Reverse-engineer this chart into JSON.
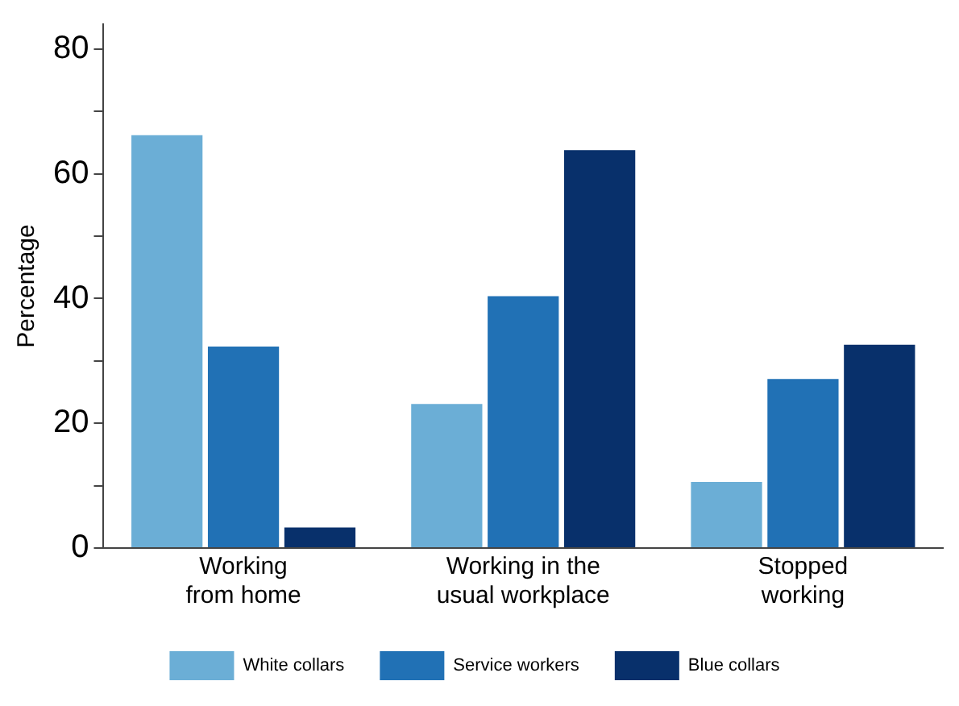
{
  "chart_data": {
    "type": "bar",
    "ylabel": "Percentage",
    "categories": [
      "Working\nfrom home",
      "Working in the\nusual workplace",
      "Stopped\nworking"
    ],
    "series": [
      {
        "name": "White collars",
        "color": "#6baed6",
        "values": [
          66.2,
          23.1,
          10.6
        ]
      },
      {
        "name": "Service workers",
        "color": "#2171b5",
        "values": [
          32.3,
          40.4,
          27.1
        ]
      },
      {
        "name": "Blue collars",
        "color": "#08306b",
        "values": [
          3.3,
          63.8,
          32.6
        ]
      }
    ],
    "ylim": [
      0,
      84
    ],
    "yticks": [
      0,
      {
        "value": 10,
        "label": null
      },
      20,
      {
        "value": 30,
        "label": null
      },
      40,
      {
        "value": 50,
        "label": null
      },
      60,
      {
        "value": 70,
        "label": null
      },
      80
    ],
    "grid": false,
    "legend": "bottom"
  }
}
